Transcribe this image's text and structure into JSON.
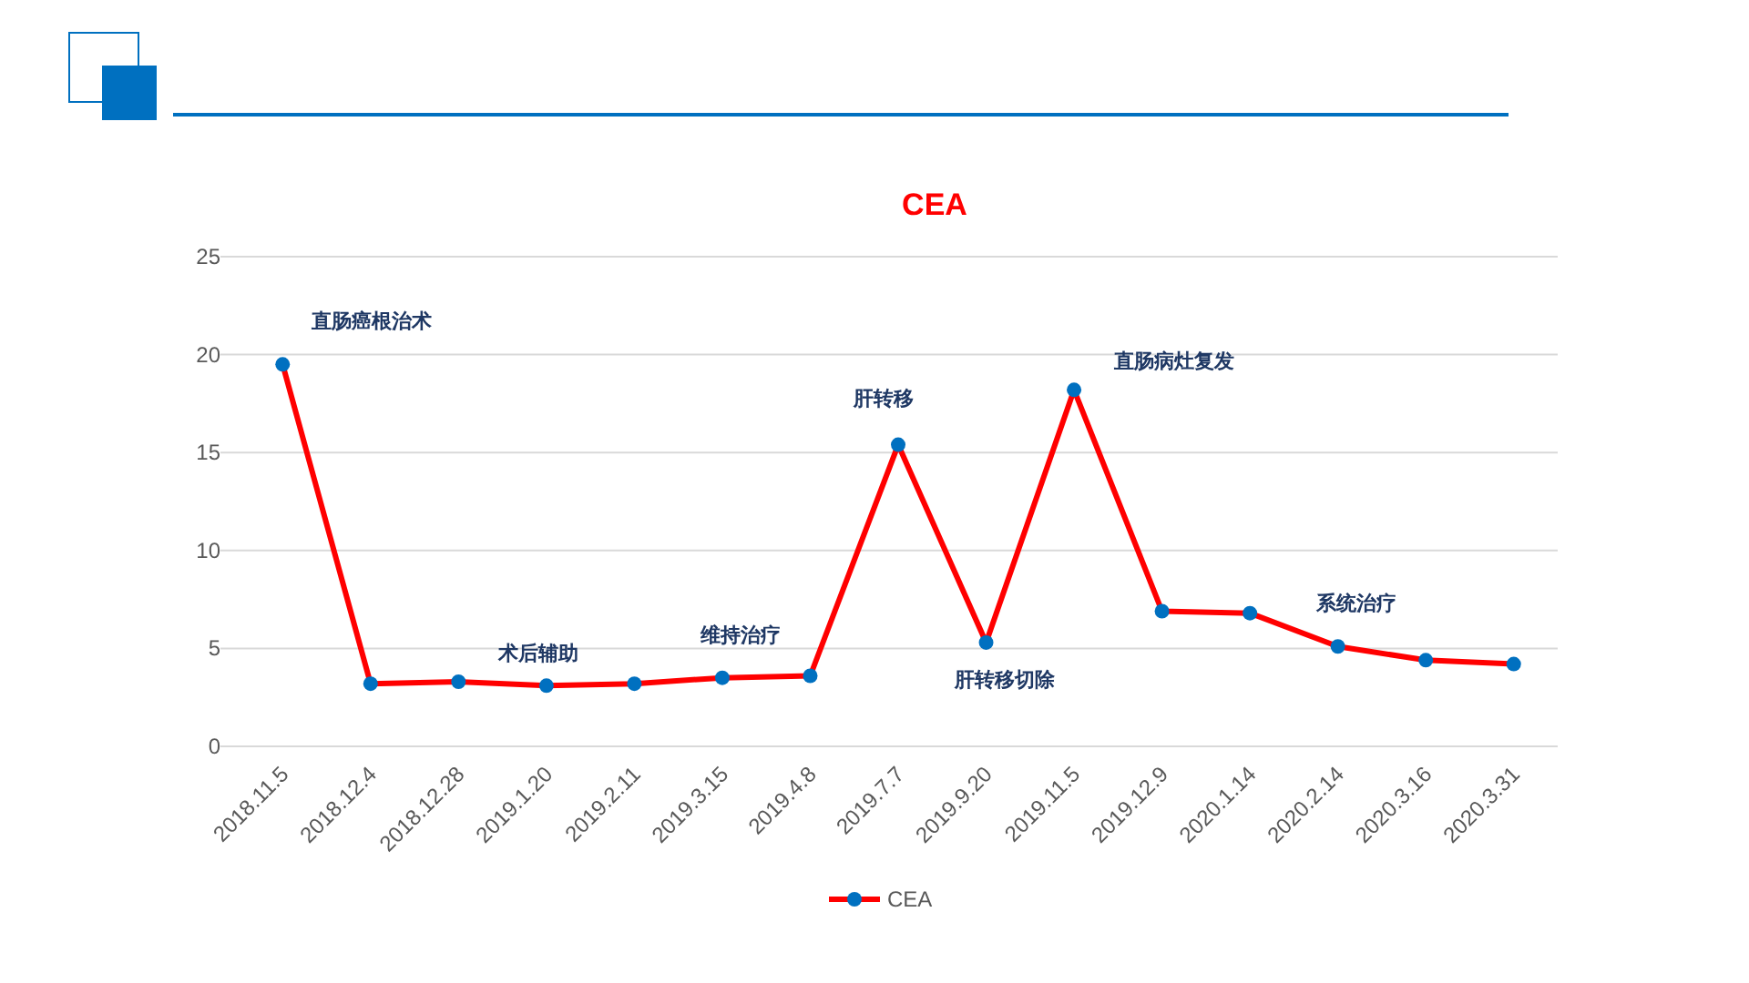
{
  "chart_data": {
    "type": "line",
    "title": "CEA",
    "categories": [
      "2018.11.5",
      "2018.12.4",
      "2018.12.28",
      "2019.1.20",
      "2019.2.11",
      "2019.3.15",
      "2019.4.8",
      "2019.7.7",
      "2019.9.20",
      "2019.11.5",
      "2019.12.9",
      "2020.1.14",
      "2020.2.14",
      "2020.3.16",
      "2020.3.31"
    ],
    "series": [
      {
        "name": "CEA",
        "color": "#ff0000",
        "values": [
          19.5,
          3.2,
          3.3,
          3.1,
          3.2,
          3.5,
          3.6,
          15.4,
          5.3,
          18.2,
          6.9,
          6.8,
          5.1,
          4.4,
          4.2
        ]
      }
    ],
    "ylim": [
      0,
      25
    ],
    "yticks": [
      0,
      5,
      10,
      15,
      20,
      25
    ],
    "grid": "y",
    "legend": "bottom",
    "marker": "circle",
    "line_style": "solid",
    "annotations": [
      {
        "text": "直肠癌根治术",
        "x": "2018.11.5",
        "y": 19.5
      },
      {
        "text": "术后辅助",
        "x": "2018.12.28",
        "y": 3.3
      },
      {
        "text": "维持治疗",
        "x": "2019.3.15",
        "y": 3.5
      },
      {
        "text": "肝转移",
        "x": "2019.7.7",
        "y": 15.4
      },
      {
        "text": "肝转移切除",
        "x": "2019.9.20",
        "y": 5.3
      },
      {
        "text": "直肠病灶复发",
        "x": "2019.11.5",
        "y": 18.2
      },
      {
        "text": "系统治疗",
        "x": "2020.2.14",
        "y": 5.1
      }
    ]
  }
}
